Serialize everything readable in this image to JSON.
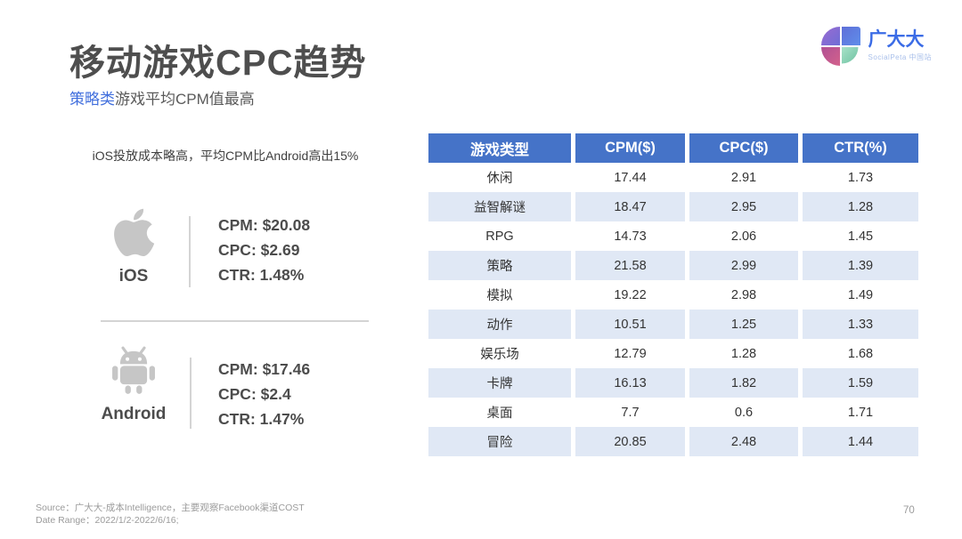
{
  "header": {
    "title": "移动游戏CPC趋势",
    "subtitle": {
      "highlight": "策略类",
      "rest": "游戏平均CPM值最高"
    }
  },
  "logo": {
    "brand": "广大大",
    "tagline": "SocialPeta 中国站"
  },
  "insight": {
    "note": "iOS投放成本略高，平均CPM比Android高出15%"
  },
  "platforms": [
    {
      "label": "iOS",
      "icon": "apple-icon",
      "stats": {
        "cpm": "CPM: $20.08",
        "cpc": "CPC: $2.69",
        "ctr": "CTR: 1.48%"
      }
    },
    {
      "label": "Android",
      "icon": "android-icon",
      "stats": {
        "cpm": "CPM: $17.46",
        "cpc": "CPC: $2.4",
        "ctr": "CTR: 1.47%"
      }
    }
  ],
  "table": {
    "headers": [
      "游戏类型",
      "CPM($)",
      "CPC($)",
      "CTR(%)"
    ],
    "rows": [
      [
        "休闲",
        "17.44",
        "2.91",
        "1.73"
      ],
      [
        "益智解谜",
        "18.47",
        "2.95",
        "1.28"
      ],
      [
        "RPG",
        "14.73",
        "2.06",
        "1.45"
      ],
      [
        "策略",
        "21.58",
        "2.99",
        "1.39"
      ],
      [
        "模拟",
        "19.22",
        "2.98",
        "1.49"
      ],
      [
        "动作",
        "10.51",
        "1.25",
        "1.33"
      ],
      [
        "娱乐场",
        "12.79",
        "1.28",
        "1.68"
      ],
      [
        "卡牌",
        "16.13",
        "1.82",
        "1.59"
      ],
      [
        "桌面",
        "7.7",
        "0.6",
        "1.71"
      ],
      [
        "冒险",
        "20.85",
        "2.48",
        "1.44"
      ]
    ]
  },
  "footer": {
    "source": "Source：广大大-成本Intelligence，主要观察Facebook渠道COST",
    "date_range": "Date Range：2022/1/2-2022/6/16;",
    "page_number": "70"
  },
  "colors": {
    "header_blue": "#4573C8",
    "stripe_blue": "#E0E8F5",
    "subtitle_blue": "#416FDD",
    "icon_gray": "#C6C6C6"
  },
  "chart_data": {
    "type": "table",
    "title": "移动游戏CPC趋势",
    "columns": [
      "游戏类型",
      "CPM($)",
      "CPC($)",
      "CTR(%)"
    ],
    "rows": [
      {
        "游戏类型": "休闲",
        "CPM": 17.44,
        "CPC": 2.91,
        "CTR": 1.73
      },
      {
        "游戏类型": "益智解谜",
        "CPM": 18.47,
        "CPC": 2.95,
        "CTR": 1.28
      },
      {
        "游戏类型": "RPG",
        "CPM": 14.73,
        "CPC": 2.06,
        "CTR": 1.45
      },
      {
        "游戏类型": "策略",
        "CPM": 21.58,
        "CPC": 2.99,
        "CTR": 1.39
      },
      {
        "游戏类型": "模拟",
        "CPM": 19.22,
        "CPC": 2.98,
        "CTR": 1.49
      },
      {
        "游戏类型": "动作",
        "CPM": 10.51,
        "CPC": 1.25,
        "CTR": 1.33
      },
      {
        "游戏类型": "娱乐场",
        "CPM": 12.79,
        "CPC": 1.28,
        "CTR": 1.68
      },
      {
        "游戏类型": "卡牌",
        "CPM": 16.13,
        "CPC": 1.82,
        "CTR": 1.59
      },
      {
        "游戏类型": "桌面",
        "CPM": 7.7,
        "CPC": 0.6,
        "CTR": 1.71
      },
      {
        "游戏类型": "冒险",
        "CPM": 20.85,
        "CPC": 2.48,
        "CTR": 1.44
      }
    ],
    "platform_summary": [
      {
        "platform": "iOS",
        "CPM": 20.08,
        "CPC": 2.69,
        "CTR": 1.48
      },
      {
        "platform": "Android",
        "CPM": 17.46,
        "CPC": 2.4,
        "CTR": 1.47
      }
    ]
  }
}
